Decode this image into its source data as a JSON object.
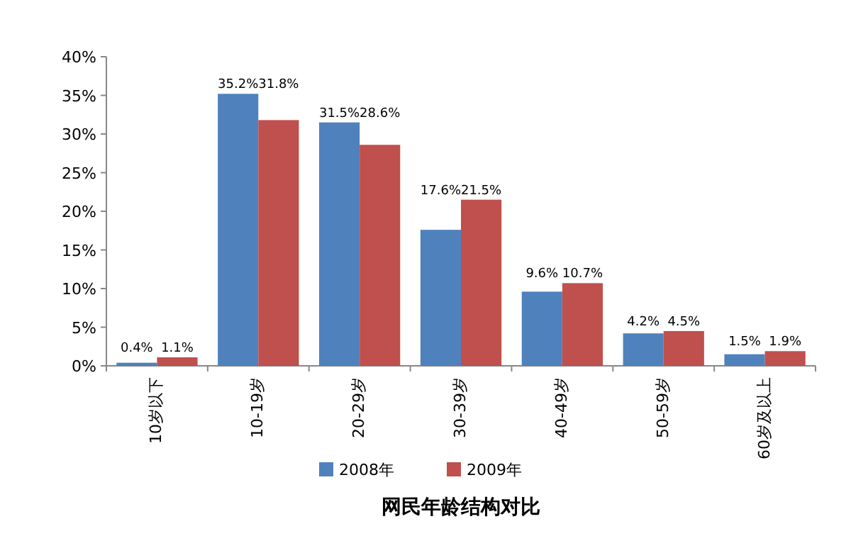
{
  "chart_data": {
    "type": "bar",
    "title": "网民年龄结构对比",
    "categories": [
      "10岁以下",
      "10-19岁",
      "20-29岁",
      "30-39岁",
      "40-49岁",
      "50-59岁",
      "60岁及以上"
    ],
    "series": [
      {
        "name": "2008年",
        "color": "#4f81bd",
        "values": [
          0.4,
          35.2,
          31.5,
          17.6,
          9.6,
          4.2,
          1.5
        ],
        "value_labels": [
          "0.4%",
          "35.2%",
          "31.5%",
          "17.6%",
          "9.6%",
          "4.2%",
          "1.5%"
        ]
      },
      {
        "name": "2009年",
        "color": "#c0504d",
        "values": [
          1.1,
          31.8,
          28.6,
          21.5,
          10.7,
          4.5,
          1.9
        ],
        "value_labels": [
          "1.1%",
          "31.8%",
          "28.6%",
          "21.5%",
          "10.7%",
          "4.5%",
          "1.9%"
        ]
      }
    ],
    "ylim": [
      0,
      40
    ],
    "yticks": [
      {
        "value": 0,
        "label": "0%"
      },
      {
        "value": 5,
        "label": "5%"
      },
      {
        "value": 10,
        "label": "10%"
      },
      {
        "value": 15,
        "label": "15%"
      },
      {
        "value": 20,
        "label": "20%"
      },
      {
        "value": 25,
        "label": "25%"
      },
      {
        "value": 30,
        "label": "30%"
      },
      {
        "value": 35,
        "label": "35%"
      },
      {
        "value": 40,
        "label": "40%"
      }
    ],
    "legend": "bottom"
  }
}
